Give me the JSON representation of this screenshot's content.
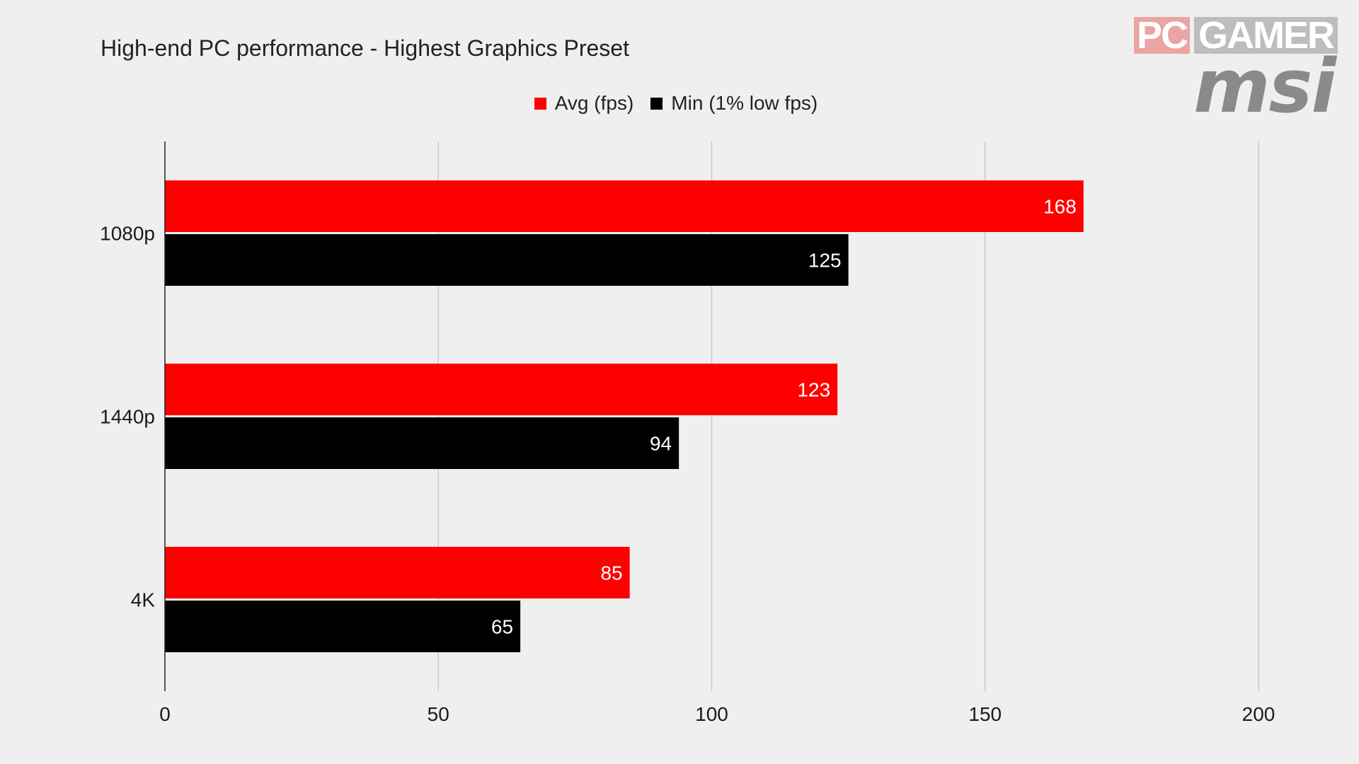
{
  "logo": {
    "pc": "PC",
    "gamer": "GAMER",
    "brand": "msi"
  },
  "chart_data": {
    "type": "bar",
    "orientation": "horizontal",
    "title": "High-end PC performance - Highest Graphics Preset",
    "categories": [
      "1080p",
      "1440p",
      "4K"
    ],
    "series": [
      {
        "name": "Avg (fps)",
        "color": "#ff0000",
        "values": [
          168,
          123,
          85
        ]
      },
      {
        "name": "Min (1% low fps)",
        "color": "#000000",
        "values": [
          125,
          94,
          65
        ]
      }
    ],
    "xlim": [
      0,
      200
    ],
    "xticks": [
      0,
      50,
      100,
      150,
      200
    ],
    "grid": true,
    "legend_position": "top-center",
    "data_labels": true
  }
}
